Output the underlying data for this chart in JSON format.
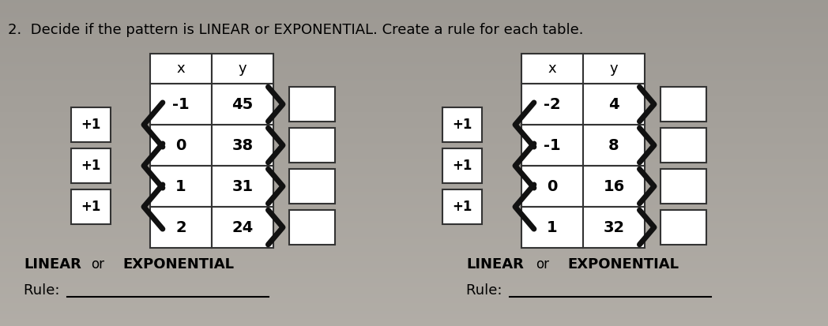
{
  "title": "2.  Decide if the pattern is LINEAR or EXPONENTIAL. Create a rule for each table.",
  "bg_color_top": "#c8c0b8",
  "bg_color_bottom": "#d8d4cc",
  "table1": {
    "x_vals": [
      "-1",
      "0",
      "1",
      "2"
    ],
    "y_vals": [
      "45",
      "38",
      "31",
      "24"
    ],
    "left_labels": [
      "+1",
      "+1",
      "+1"
    ]
  },
  "table2": {
    "x_vals": [
      "-2",
      "-1",
      "0",
      "1"
    ],
    "y_vals": [
      "4",
      "8",
      "16",
      "32"
    ],
    "left_labels": [
      "+1",
      "+1",
      "+1"
    ]
  },
  "bottom1_text1": "LINEAR",
  "bottom1_text2": "or",
  "bottom1_text3": "EXPONENTIAL",
  "bottom1_rule": "Rule: ",
  "bottom2_text1": "LINEAR",
  "bottom2_text2": "or",
  "bottom2_text3": "EXPONENTIAL",
  "bottom2_rule": "Rule: "
}
